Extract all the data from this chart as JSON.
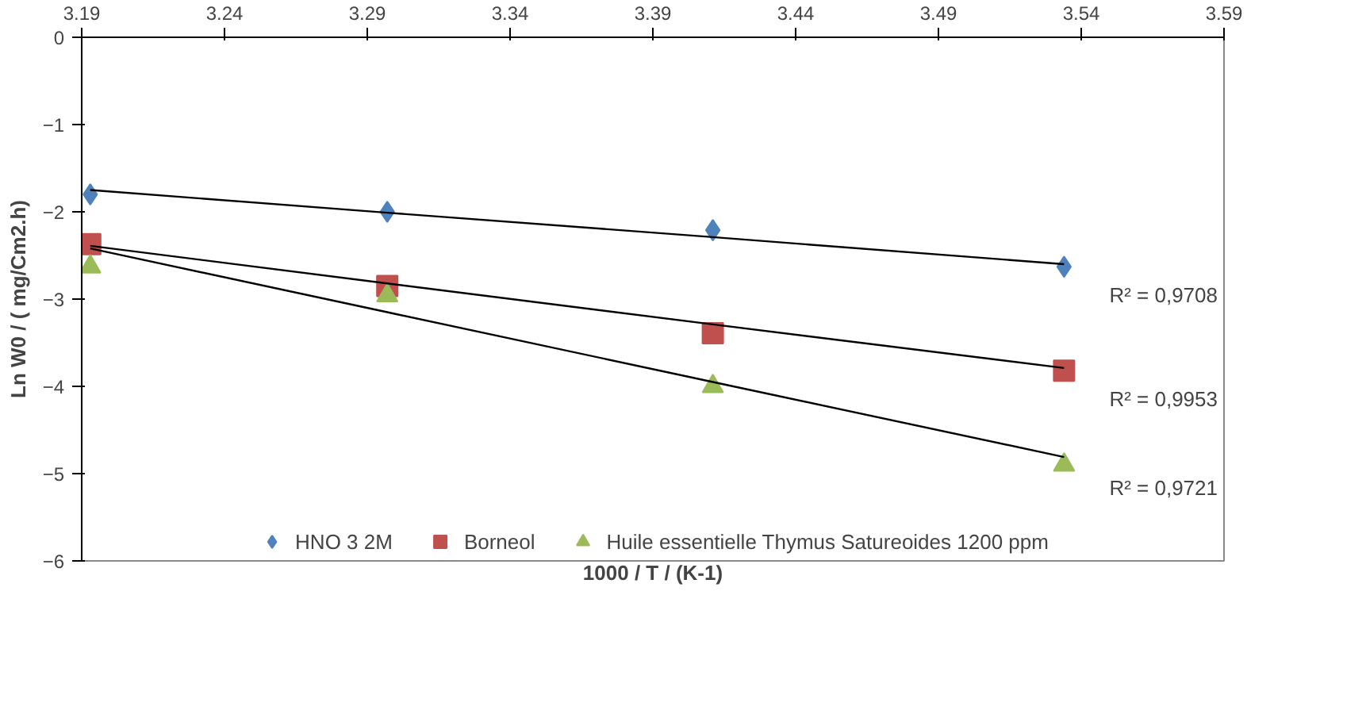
{
  "chart_data": {
    "type": "scatter",
    "xlabel": "1000 / T / (K-1)",
    "ylabel": "Ln W0 / ( mg/Cm2.h)",
    "x": [
      3.193,
      3.297,
      3.411,
      3.534
    ],
    "series": [
      {
        "name": "HNO 3 2M",
        "color": "#4f81bd",
        "marker": "diamond",
        "values": [
          -1.8,
          -2.0,
          -2.21,
          -2.63
        ]
      },
      {
        "name": "Borneol",
        "color": "#c0504d",
        "marker": "square",
        "values": [
          -2.37,
          -2.85,
          -3.39,
          -3.82
        ]
      },
      {
        "name": "Huile essentielle Thymus Satureoides 1200 ppm",
        "color": "#9bbb59",
        "marker": "triangle",
        "values": [
          -2.63,
          -2.96,
          -4.0,
          -4.9
        ]
      },
      {
        "type": "line",
        "color": "#000000",
        "values": [
          -1.75,
          -2.01,
          -2.29,
          -2.6
        ]
      },
      {
        "type": "line",
        "color": "#000000",
        "values": [
          -2.39,
          -2.82,
          -3.29,
          -3.79
        ]
      },
      {
        "type": "line",
        "color": "#000000",
        "values": [
          -2.42,
          -3.15,
          -3.95,
          -4.81
        ]
      }
    ],
    "annotations": [
      "R² = 0,9708",
      "R² = 0,9953",
      "R² = 0,9721"
    ],
    "xlim": [
      3.19,
      3.59
    ],
    "ylim": [
      -6,
      0
    ],
    "xticks": [
      3.19,
      3.24,
      3.29,
      3.34,
      3.39,
      3.44,
      3.49,
      3.54,
      3.59
    ],
    "yticks": [
      -6,
      -5,
      -4,
      -3,
      -2,
      -1,
      0
    ],
    "grid": false,
    "legend": "bottom"
  }
}
